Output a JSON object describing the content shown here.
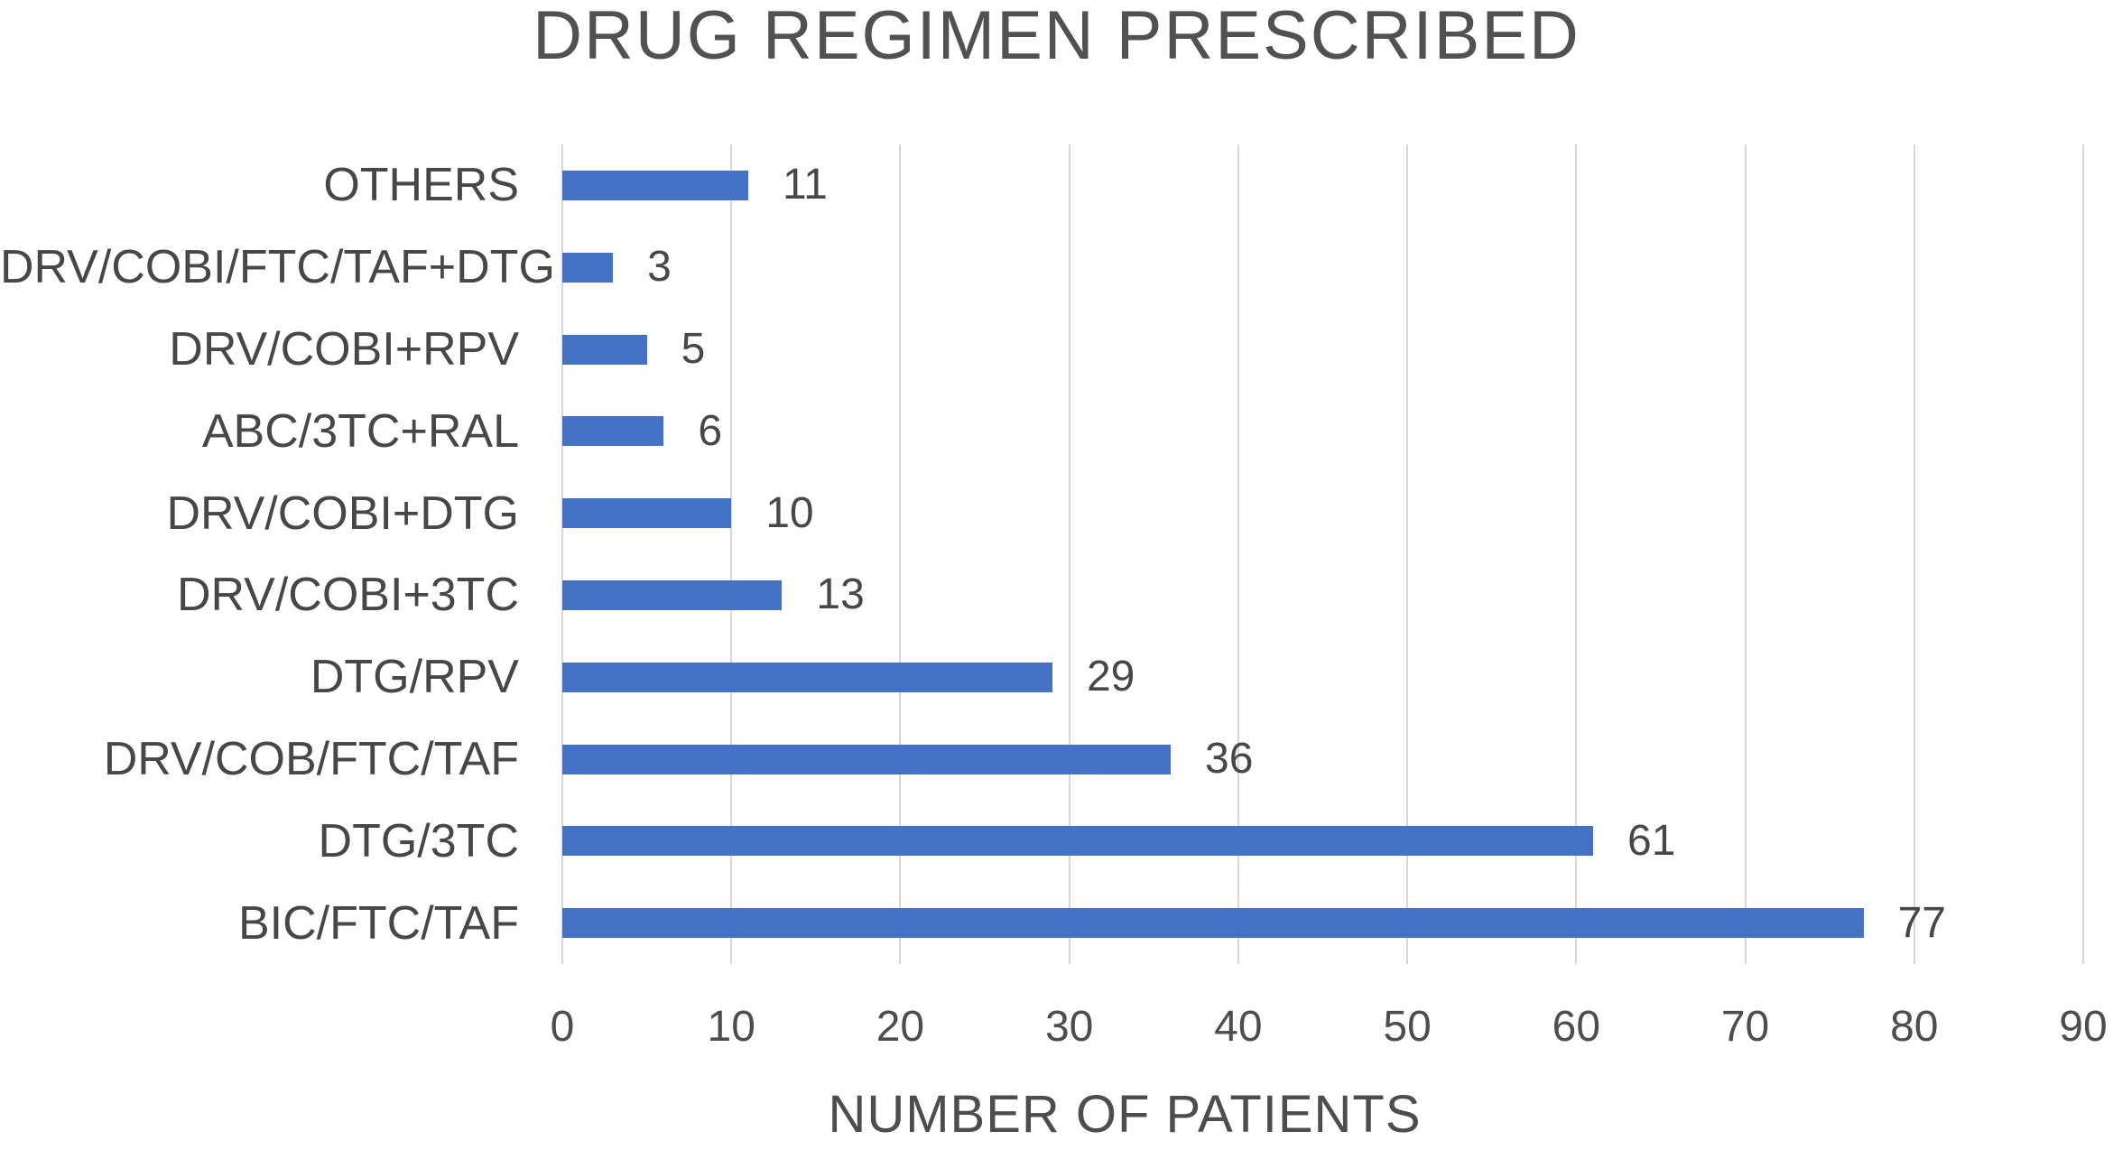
{
  "title": "DRUG REGIMEN PRESCRIBED",
  "xlabel": "NUMBER OF PATIENTS",
  "colors": {
    "bar": "#4472C4",
    "gridline": "#D8D8D8",
    "text": "#474747",
    "title_text": "#515151"
  },
  "chart_data": {
    "type": "bar",
    "orientation": "horizontal",
    "title": "DRUG REGIMEN PRESCRIBED",
    "xlabel": "NUMBER OF PATIENTS",
    "categories": [
      "OTHERS",
      "DRV/COBI/FTC/TAF+DTG",
      "DRV/COBI+RPV",
      "ABC/3TC+RAL",
      "DRV/COBI+DTG",
      "DRV/COBI+3TC",
      "DTG/RPV",
      "DRV/COB/FTC/TAF",
      "DTG/3TC",
      "BIC/FTC/TAF"
    ],
    "values": [
      11,
      3,
      5,
      6,
      10,
      13,
      29,
      36,
      61,
      77
    ],
    "xlim": [
      0,
      90
    ],
    "xticks": [
      0,
      10,
      20,
      30,
      40,
      50,
      60,
      70,
      80,
      90
    ],
    "grid": true,
    "data_labels": true,
    "legend": "none"
  }
}
